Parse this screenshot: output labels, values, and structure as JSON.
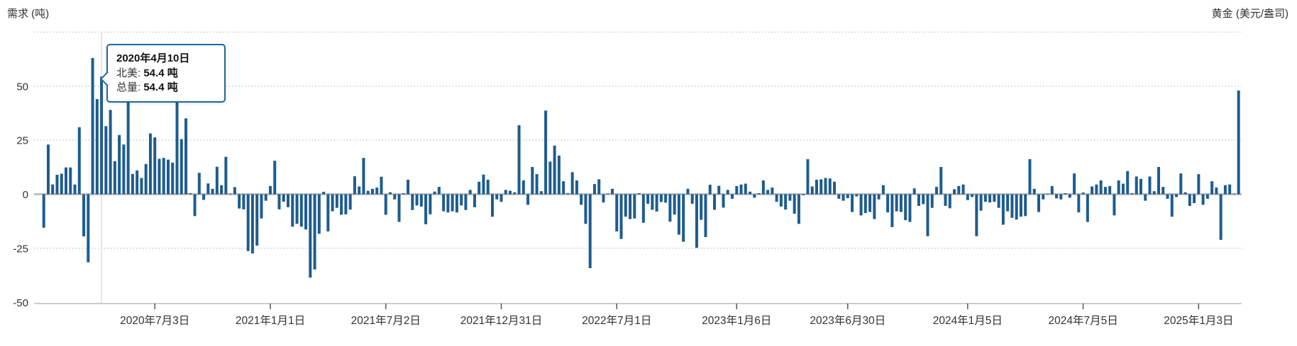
{
  "titles": {
    "left": "需求 (吨)",
    "right": "黄金 (美元/盎司)"
  },
  "tooltip": {
    "date": "2020年4月10日",
    "rows": [
      {
        "label": "北美:",
        "value": "54.4 吨"
      },
      {
        "label": "总量:",
        "value": "54.4 吨"
      }
    ],
    "anchor_index": 13
  },
  "colors": {
    "bar": "#1e5c8e",
    "tooltip_border": "#20699e",
    "grid": "#cccccc",
    "zero_line": "#b3b3b3",
    "baseline": "#cccccc",
    "crosshair": "#d4d4d4",
    "tick": "#555555",
    "text": "#333333"
  },
  "chart_data": {
    "type": "bar",
    "title": "",
    "series_name": "总量",
    "unit": "吨",
    "ylabel": "需求 (吨)",
    "ylabel_right": "黄金 (美元/盎司)",
    "ylim": [
      -50,
      75
    ],
    "y_ticks": [
      50,
      25,
      0,
      -25,
      -50
    ],
    "grid": "dotted-horizontal",
    "legend": "none",
    "interval": "weekly",
    "start_date": "2020-01-10",
    "end_date": "2025-03-07",
    "x_ticks": [
      {
        "index": 25,
        "label": "2020年7月3日"
      },
      {
        "index": 51,
        "label": "2021年1月1日"
      },
      {
        "index": 77,
        "label": "2021年7月2日"
      },
      {
        "index": 103,
        "label": "2021年12月31日"
      },
      {
        "index": 129,
        "label": "2022年7月1日"
      },
      {
        "index": 156,
        "label": "2023年1月6日"
      },
      {
        "index": 181,
        "label": "2023年6月30日"
      },
      {
        "index": 208,
        "label": "2024年1月5日"
      },
      {
        "index": 234,
        "label": "2024年7月5日"
      },
      {
        "index": 260,
        "label": "2025年1月3日"
      }
    ],
    "values": [
      -15.5,
      23,
      4.5,
      9,
      9.5,
      12.4,
      12.4,
      4.5,
      31,
      -19.5,
      -31.5,
      63,
      44,
      54.4,
      31.5,
      39,
      15.3,
      27.4,
      23,
      44,
      9.4,
      11,
      7.5,
      14,
      28.1,
      26.3,
      16.4,
      16.8,
      16,
      14.6,
      44,
      25.5,
      35.1,
      0.5,
      -10.1,
      9.9,
      -2.6,
      5,
      2.5,
      12.7,
      4.2,
      17.3,
      0.3,
      3.3,
      -6.6,
      -7,
      -26.3,
      -27.4,
      -23.8,
      -11.2,
      -3,
      3.8,
      15.5,
      -7,
      -3.5,
      -6,
      -15,
      -13.7,
      -15,
      -16.3,
      -38.6,
      -34.8,
      -18.3,
      1.1,
      -17.2,
      -7.9,
      -6.3,
      -9.5,
      -9.3,
      -7.1,
      8.3,
      3.6,
      16.8,
      1.6,
      2.5,
      3.1,
      8.1,
      -9.5,
      0.9,
      -2.4,
      -12.8,
      0.5,
      6.7,
      -7.3,
      -5.2,
      -5.7,
      -13.9,
      -9.3,
      1.2,
      3.4,
      -7.9,
      -8.4,
      -7.9,
      -8.4,
      -5.2,
      -7.3,
      2,
      -6,
      5.8,
      9.1,
      6.7,
      -10.4,
      -2.4,
      -3.5,
      2,
      1.6,
      0.9,
      31.9,
      6.4,
      -4.9,
      12.6,
      9.3,
      1.4,
      38.7,
      15.1,
      22.5,
      17.9,
      6,
      0.5,
      10.2,
      6.4,
      -4.9,
      -13.7,
      -34.2,
      4.7,
      6.9,
      -3.8,
      0.3,
      2.5,
      -17.2,
      -20.7,
      -10.4,
      -11.5,
      -11.2,
      0.5,
      -13.2,
      -4.4,
      -7.2,
      -8,
      -3.6,
      -3.9,
      -12.7,
      -9.4,
      -18.7,
      -22,
      2.5,
      -4.4,
      -24.8,
      -11.8,
      -19.8,
      4.4,
      -7.2,
      3.9,
      -6.2,
      2,
      -2.1,
      3.8,
      4.5,
      4.9,
      1.2,
      -1.6,
      0.5,
      6.4,
      2,
      3.1,
      -3.5,
      -5.7,
      -7.1,
      -3,
      -9,
      -13.7,
      -0.5,
      16.2,
      3.6,
      6.7,
      6.9,
      7.5,
      7.3,
      5.8,
      -2.1,
      -3,
      -1.8,
      -8.2,
      -1,
      -9.8,
      -8.7,
      -8.2,
      -11.5,
      -2.4,
      4.2,
      -8.4,
      -15.2,
      -7.9,
      -8.2,
      -12,
      -12.8,
      2.7,
      -5.4,
      -4.6,
      -19.4,
      -6.3,
      3.4,
      12.6,
      -5.4,
      -6.5,
      2.3,
      3.8,
      4.5,
      -2.7,
      -1.3,
      -19.4,
      -7.6,
      -3.5,
      -3.8,
      -3.5,
      -6.3,
      -14.1,
      -7.9,
      -10.9,
      -11.7,
      -10.4,
      -10.1,
      16.2,
      2.5,
      -8.2,
      -2.4,
      0.3,
      3.8,
      -1.9,
      -2.4,
      0.5,
      -1.6,
      9.6,
      -8.4,
      0.8,
      -12.8,
      3.6,
      4.5,
      6.4,
      3.4,
      3.8,
      -9.8,
      6.4,
      4.9,
      10.7,
      0.5,
      8.2,
      7.1,
      -3,
      8.2,
      1.4,
      12.6,
      3.4,
      -2.1,
      -10.4,
      -1.3,
      9.6,
      0.9,
      -5.4,
      -4.1,
      9.3,
      -4.9,
      -2.1,
      6,
      3.1,
      -21.1,
      4.2,
      4.5,
      0.3,
      48
    ]
  }
}
